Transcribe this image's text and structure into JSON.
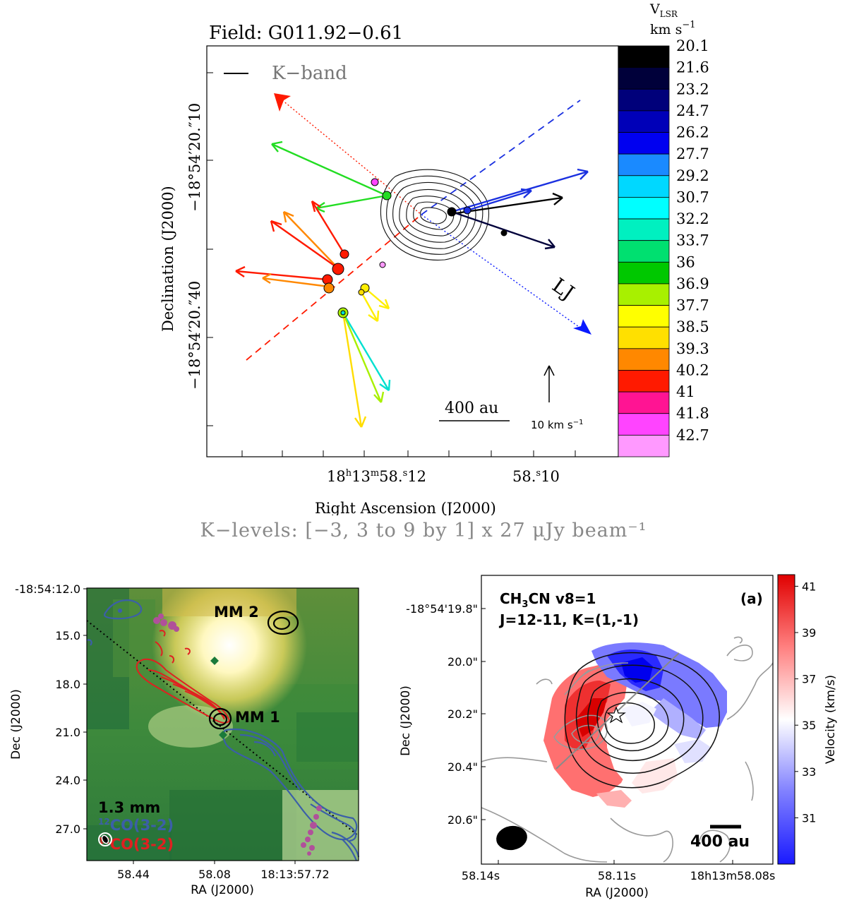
{
  "chart_data": [
    {
      "type": "scatter",
      "panel": "top",
      "title": "Field: G011.92−0.61",
      "xlabel": "Right Ascension (J2000)",
      "ylabel": "Declination (J2000)",
      "x_ticks": [
        "18h13m58.s12",
        "58.s10"
      ],
      "y_ticks": [
        "−18°54′20.″ 10",
        "−18°54′20.″ 40"
      ],
      "legend": "K−band",
      "levels_caption": "K−levels: [−3, 3 to 9 by 1]  x 27 μJy beam⁻¹",
      "scale_bar": "400 au",
      "velocity_key": "10 km s⁻¹",
      "annotation": "LJ",
      "colorbar": {
        "title": "V_LSR km s⁻¹",
        "ticks": [
          "20.1",
          "21.6",
          "23.2",
          "24.7",
          "26.2",
          "27.7",
          "29.2",
          "30.7",
          "32.2",
          "33.7",
          "36",
          "36.9",
          "37.7",
          "38.5",
          "39.3",
          "40.2",
          "41",
          "41.8",
          "42.7"
        ],
        "colors": [
          "#000000",
          "#00003a",
          "#00007a",
          "#0000b8",
          "#0000f0",
          "#1a8aff",
          "#00d8ff",
          "#00ffff",
          "#00f0c0",
          "#00e070",
          "#00c800",
          "#a8f000",
          "#ffff00",
          "#ffe000",
          "#ff8800",
          "#ff1a00",
          "#ff1493",
          "#ff44ff",
          "#ff99ff"
        ]
      }
    },
    {
      "type": "heatmap",
      "panel": "bottom-left",
      "xlabel": "RA (J2000)",
      "ylabel": "Dec (J2000)",
      "x_ticks": [
        "58.44",
        "58.08",
        "18:13:57.72"
      ],
      "y_ticks": [
        "-18:54:12.0",
        "15.0",
        "18.0",
        "21.0",
        "24.0",
        "27.0"
      ],
      "labels": [
        "MM 2",
        "MM 1"
      ],
      "legend": [
        "1.3 mm",
        "12CO(3-2)",
        "12CO(3-2)"
      ],
      "legend_colors": [
        "#000000",
        "#3b5fa8",
        "#e02020"
      ]
    },
    {
      "type": "heatmap",
      "panel": "bottom-right",
      "title_line1": "CH3CN v8=1",
      "title_line2": "J=12-11, K=(1,-1)",
      "panel_tag": "(a)",
      "xlabel": "RA (J2000)",
      "ylabel": "Dec (J2000)",
      "x_ticks": [
        "58.14s",
        "58.11s",
        "18h13m58.08s"
      ],
      "y_ticks": [
        "-18°54'19.8\"",
        "20.0\"",
        "20.2\"",
        "20.4\"",
        "20.6\""
      ],
      "scale_bar": "400 au",
      "colorbar": {
        "label": "Velocity (km/s)",
        "ticks": [
          41,
          39,
          37,
          35,
          33,
          31
        ],
        "range": [
          29,
          41.5
        ]
      }
    }
  ],
  "top": {
    "title_prefix": "Field:",
    "title_name": "G011.92−0.61",
    "legend": "K−band",
    "cbar_head": "V",
    "cbar_sub": "LSR",
    "cbar_unit": "km s",
    "cbar_unit_exp": "−1",
    "x_tick1_a": "18",
    "x_tick1_b": "h",
    "x_tick1_c": "13",
    "x_tick1_d": "m",
    "x_tick1_e": "58.",
    "x_tick1_f": "s",
    "x_tick1_g": "12",
    "x_tick2_a": "58.",
    "x_tick2_b": "s",
    "x_tick2_c": "10",
    "y_tick1": "−18°54′20.″10",
    "y_tick2": "−18°54′20.″40",
    "xlabel": "Right Ascension (J2000)",
    "ylabel": "Declination (J2000)",
    "scale_bar": "400 au",
    "vel_key": "10 km s",
    "vel_key_exp": "−1",
    "annotation": "LJ",
    "levels_caption": "K−levels: [−3, 3 to 9 by 1]  x 27 μJy beam⁻¹"
  },
  "left": {
    "mm2": "MM 2",
    "mm1": "MM 1",
    "leg1": "1.3 mm",
    "leg2_sup": "12",
    "leg2": "CO(3-2)",
    "leg3_sup": "12",
    "leg3": "CO(3-2)",
    "xlabel": "RA (J2000)",
    "ylabel": "Dec (J2000)",
    "x1": "58.44",
    "x2": "58.08",
    "x3": "18:13:57.72",
    "y1": "-18:54:12.0",
    "y2": "15.0",
    "y3": "18.0",
    "y4": "21.0",
    "y5": "24.0",
    "y6": "27.0"
  },
  "right": {
    "title1a": "CH",
    "title1b": "3",
    "title1c": "CN v8=1",
    "title2": "J=12-11, K=(1,-1)",
    "tag": "(a)",
    "scale": "400 au",
    "xlabel": "RA (J2000)",
    "ylabel": "Dec (J2000)",
    "x1": "58.14s",
    "x2": "58.11s",
    "x3": "18h13m58.08s",
    "y1": "-18°54'19.8\"",
    "y2": "20.0\"",
    "y3": "20.2\"",
    "y4": "20.4\"",
    "y5": "20.6\"",
    "cbar_label": "Velocity (km/s)",
    "cb41": "41",
    "cb39": "39",
    "cb37": "37",
    "cb35": "35",
    "cb33": "33",
    "cb31": "31"
  }
}
